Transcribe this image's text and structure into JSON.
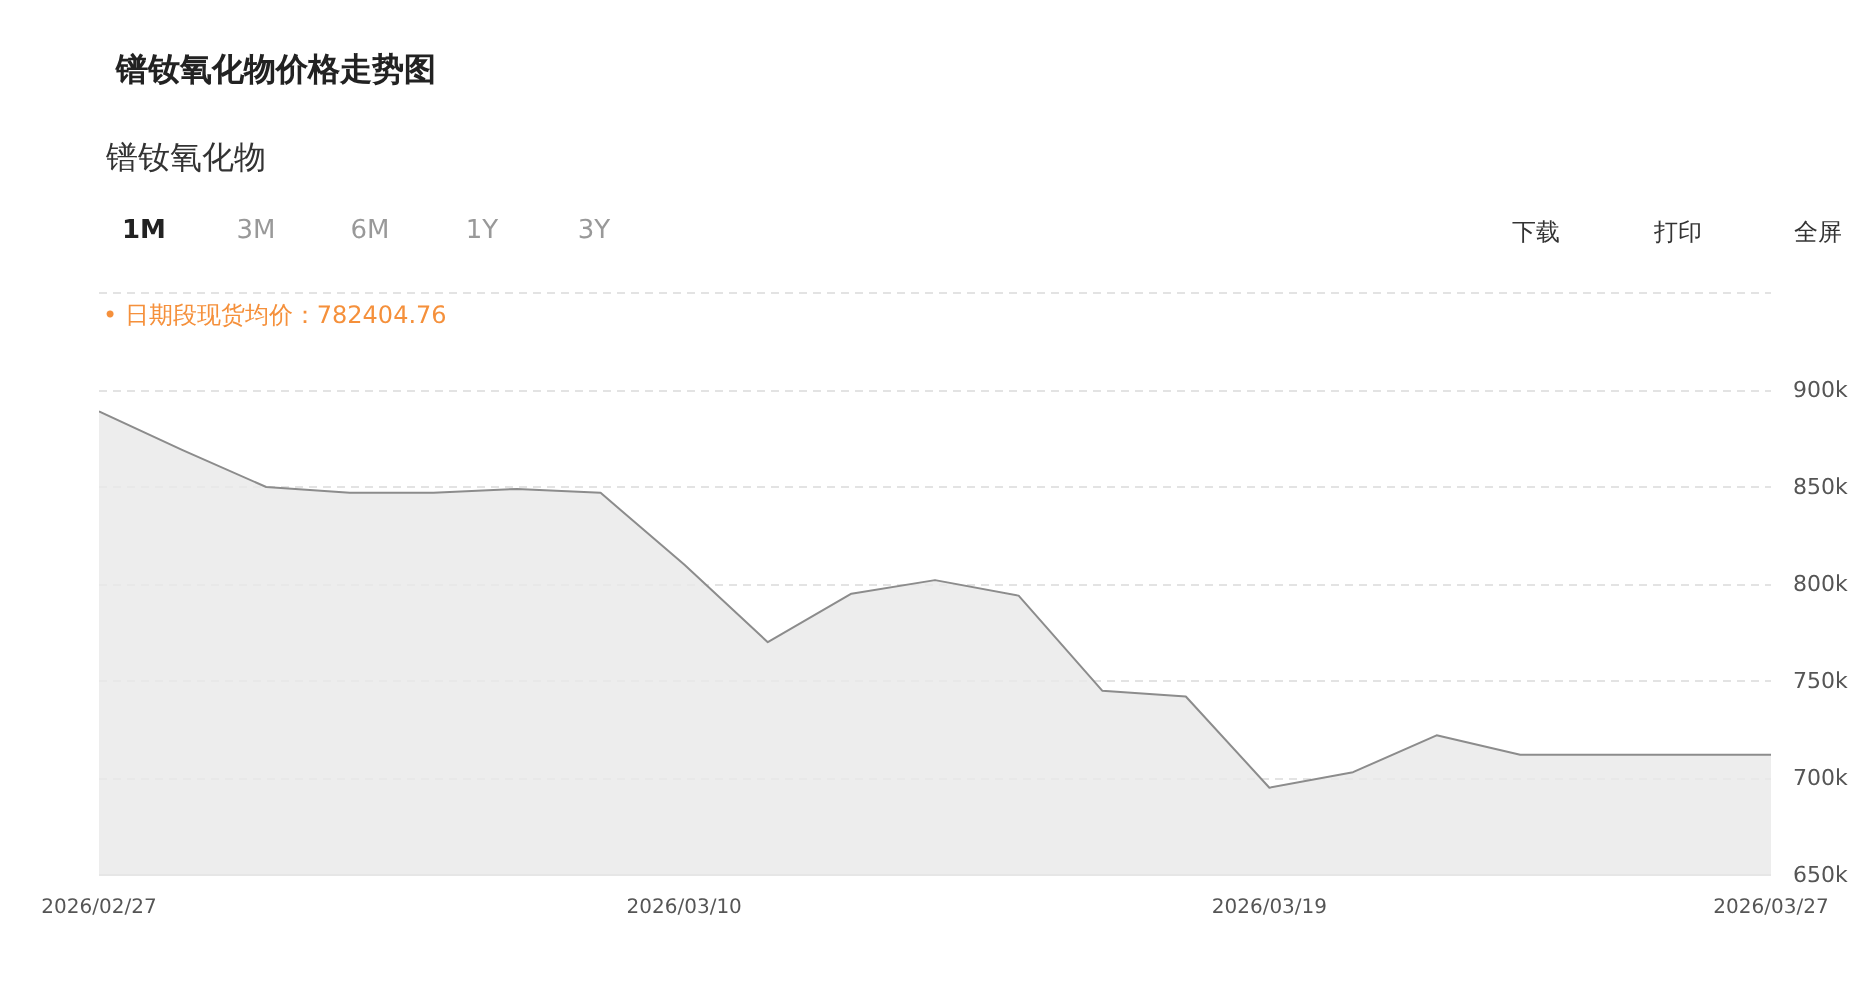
{
  "chart_data": {
    "type": "area",
    "title": "镨钕氧化物价格走势图",
    "subtitle": "镨钕氧化物",
    "annotations": [
      "1M",
      "3M",
      "6M",
      "1Y",
      "3Y",
      "下载",
      "打印",
      "全屏",
      "• 日期段现货均价：782404.76"
    ],
    "categories": [
      "2026/02/27",
      null,
      null,
      null,
      null,
      null,
      null,
      "2026/03/10",
      null,
      null,
      null,
      null,
      null,
      null,
      "2026/03/19",
      null,
      null,
      null,
      null,
      null,
      "2026/03/27"
    ],
    "series": [
      {
        "color": "#8c8c8c",
        "values": [
          889000,
          869000,
          850000,
          847000,
          847000,
          849000,
          847000,
          810000,
          770000,
          795000,
          802000,
          794000,
          745000,
          742000,
          695000,
          703000,
          722000,
          712000,
          712000,
          712000,
          712000
        ]
      }
    ],
    "ylim": [
      650000,
      950000
    ],
    "yticks": [
      {
        "value": 650000,
        "label": "650k"
      },
      {
        "value": 700000,
        "label": "700k"
      },
      {
        "value": 750000,
        "label": "750k"
      },
      {
        "value": 800000,
        "label": "800k"
      },
      {
        "value": 850000,
        "label": "850k"
      },
      {
        "value": 900000,
        "label": "900k"
      },
      {
        "value": 950000,
        "label": null
      }
    ],
    "grid": "y"
  }
}
